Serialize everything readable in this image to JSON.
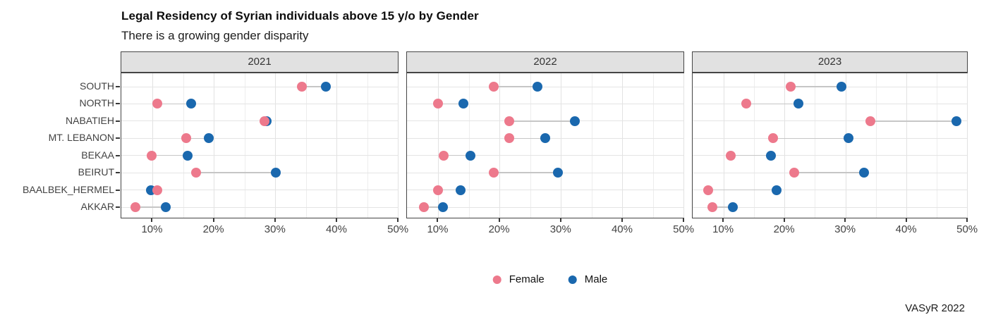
{
  "chart_data": {
    "type": "dumbbell",
    "title": "Legal Residency of Syrian individuals above 15 y/o by Gender",
    "subtitle": "There is a growing gender disparity",
    "caption": "VASyR 2022",
    "categories": [
      "SOUTH",
      "NORTH",
      "NABATIEH",
      "MT. LEBANON",
      "BEKAA",
      "BEIRUT",
      "BAALBEK_HERMEL",
      "AKKAR"
    ],
    "x_axis": {
      "tick_labels": [
        "10%",
        "20%",
        "30%",
        "40%",
        "50%"
      ],
      "tick_values": [
        10,
        20,
        30,
        40,
        50
      ],
      "minor_tick_values": [
        15,
        25,
        35,
        45
      ],
      "range": [
        4.9,
        50.1
      ],
      "unit": "%"
    },
    "legend": [
      {
        "name": "Female",
        "color": "#ed798c"
      },
      {
        "name": "Male",
        "color": "#1a68ae"
      }
    ],
    "grid": "on",
    "legend_position": "bottom-center",
    "panels": [
      {
        "label": "2021",
        "series": [
          {
            "name": "Female",
            "values": [
              34.3,
              10.7,
              28.2,
              15.4,
              9.8,
              17.1,
              10.8,
              7.2
            ]
          },
          {
            "name": "Male",
            "values": [
              38.2,
              16.2,
              28.5,
              19.1,
              15.7,
              30.0,
              9.7,
              12.1
            ]
          }
        ]
      },
      {
        "label": "2022",
        "series": [
          {
            "name": "Female",
            "values": [
              19.0,
              10.0,
              21.5,
              21.5,
              10.9,
              19.0,
              10.0,
              7.6
            ]
          },
          {
            "name": "Male",
            "values": [
              26.1,
              14.1,
              32.2,
              27.4,
              15.2,
              29.5,
              13.6,
              10.8
            ]
          }
        ]
      },
      {
        "label": "2023",
        "series": [
          {
            "name": "Female",
            "values": [
              21.0,
              13.7,
              34.0,
              18.1,
              11.2,
              21.5,
              7.4,
              8.1
            ]
          },
          {
            "name": "Male",
            "values": [
              29.3,
              22.2,
              48.1,
              30.4,
              17.7,
              33.0,
              18.6,
              11.5
            ]
          }
        ]
      }
    ],
    "colors": {
      "female": "#ed798c",
      "male": "#1a68ae",
      "connector": "#c6c6c6",
      "strip_bg": "#e1e1e1",
      "panel_border": "#454545",
      "grid_major": "#e2e2e2",
      "grid_minor": "#ededed"
    }
  }
}
